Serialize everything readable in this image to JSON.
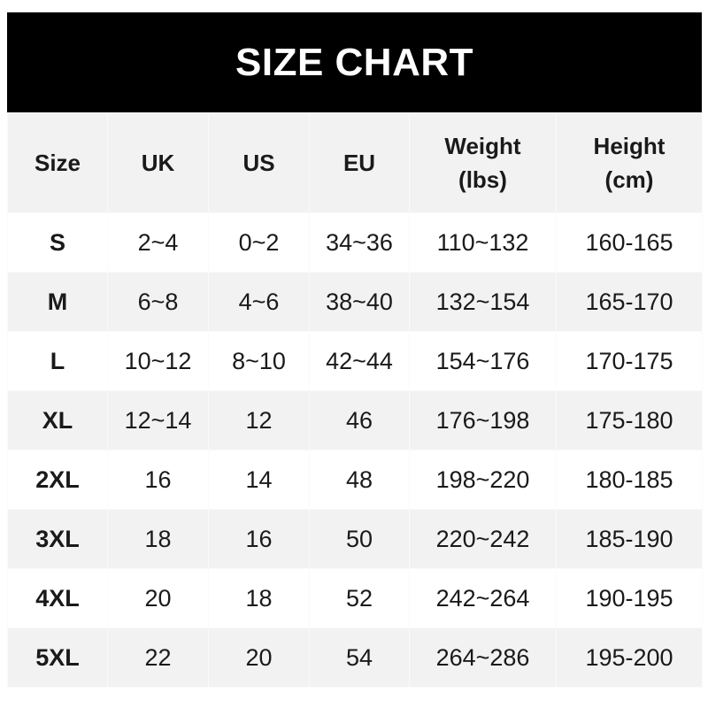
{
  "title": "SIZE CHART",
  "columns": [
    "Size",
    "UK",
    "US",
    "EU",
    "Weight\n(lbs)",
    "Height\n(cm)"
  ],
  "rows": [
    [
      "S",
      "2~4",
      "0~2",
      "34~36",
      "110~132",
      "160-165"
    ],
    [
      "M",
      "6~8",
      "4~6",
      "38~40",
      "132~154",
      "165-170"
    ],
    [
      "L",
      "10~12",
      "8~10",
      "42~44",
      "154~176",
      "170-175"
    ],
    [
      "XL",
      "12~14",
      "12",
      "46",
      "176~198",
      "175-180"
    ],
    [
      "2XL",
      "16",
      "14",
      "48",
      "198~220",
      "180-185"
    ],
    [
      "3XL",
      "18",
      "16",
      "50",
      "220~242",
      "185-190"
    ],
    [
      "4XL",
      "20",
      "18",
      "52",
      "242~264",
      "190-195"
    ],
    [
      "5XL",
      "22",
      "20",
      "54",
      "264~286",
      "195-200"
    ]
  ],
  "colors": {
    "header_bg": "#000000",
    "header_text": "#ffffff",
    "alt_row": "#f2f2f2"
  }
}
